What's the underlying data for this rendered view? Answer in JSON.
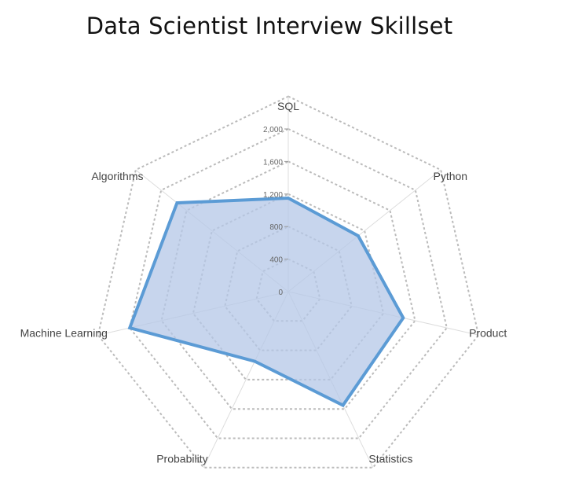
{
  "chart_data": {
    "type": "radar",
    "title": "Data Scientist Interview Skillset",
    "axes": [
      "SQL",
      "Python",
      "Product",
      "Statistics",
      "Probability",
      "Machine Learning",
      "Algorithms"
    ],
    "series": [
      {
        "values": [
          1150,
          1100,
          1450,
          1550,
          950,
          2000,
          1750
        ]
      }
    ],
    "rlim": [
      0,
      2000
    ],
    "ticks": [
      "0",
      "400",
      "800",
      "1,200",
      "1,600",
      "2,000"
    ],
    "tick_values": [
      0,
      400,
      800,
      1200,
      1600,
      2000
    ],
    "grid_levels": [
      400,
      800,
      1200,
      1600,
      2000,
      2400
    ],
    "colors": {
      "line": "#5b9bd5",
      "fill": "#b4c7e7",
      "grid": "#bbbbbb",
      "spoke": "#dddddd"
    }
  }
}
